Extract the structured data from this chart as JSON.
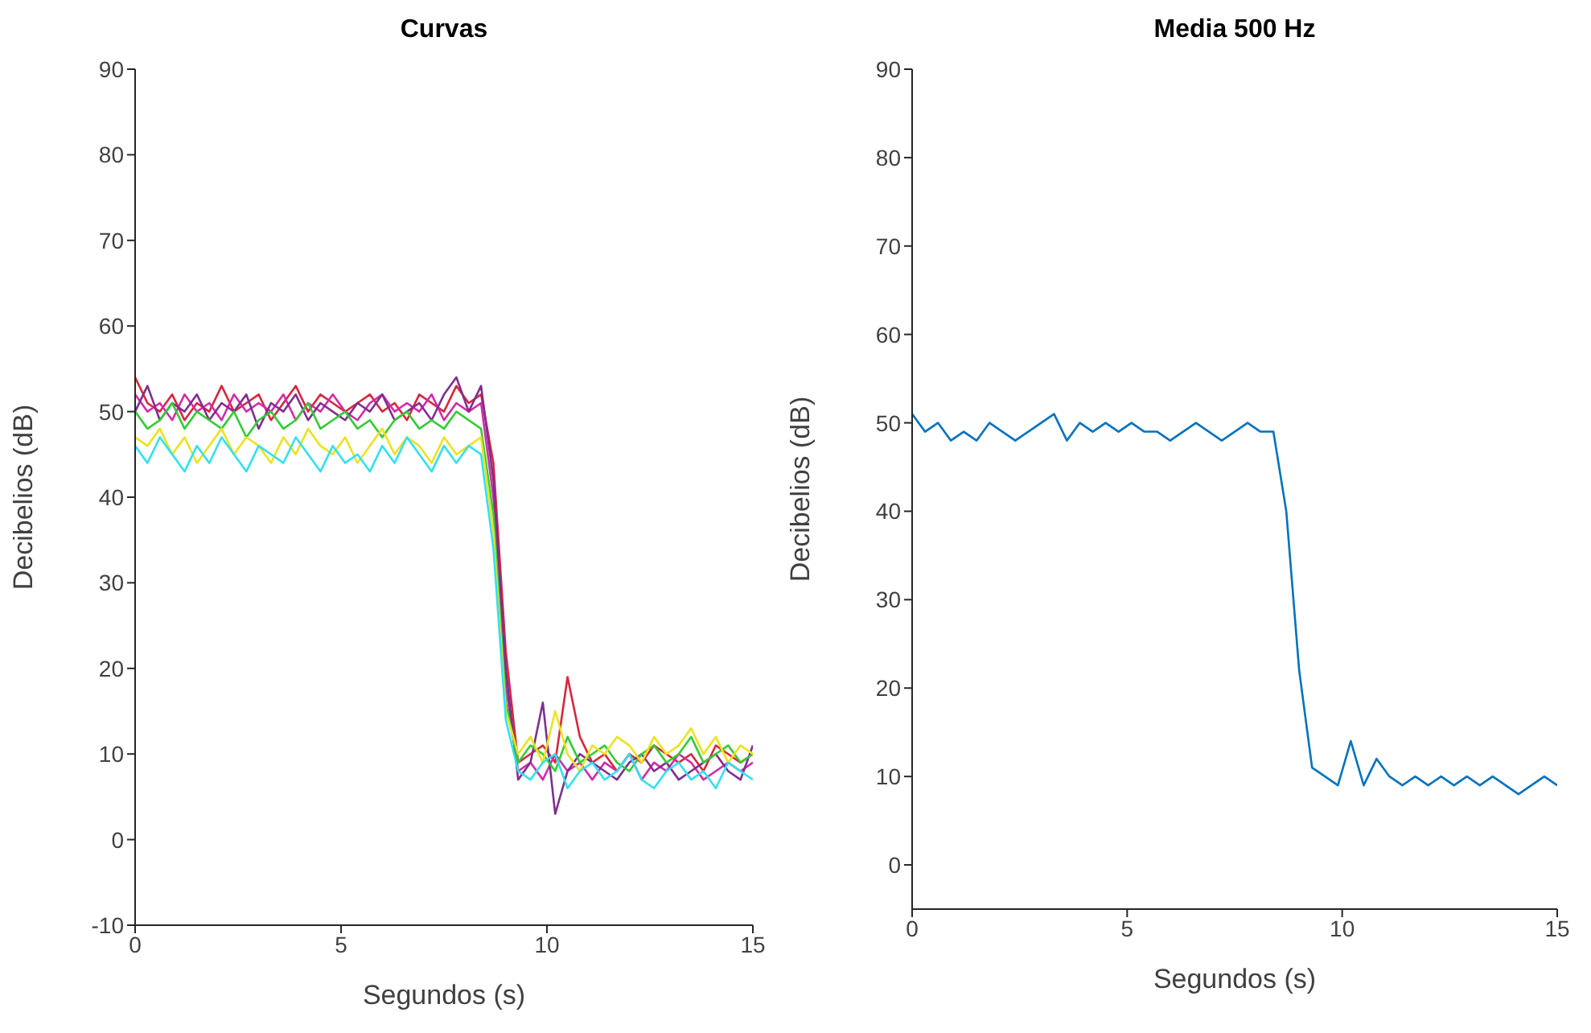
{
  "chart_data": [
    {
      "type": "line",
      "title": "Curvas",
      "xlabel": "Segundos (s)",
      "ylabel": "Decibelios (dB)",
      "xlim": [
        0,
        15
      ],
      "xticks": [
        0,
        5,
        10,
        15
      ],
      "ylim": [
        -10,
        90
      ],
      "yticks": [
        -10,
        0,
        10,
        20,
        30,
        40,
        50,
        60,
        70,
        80,
        90
      ],
      "grid": false,
      "legend": false,
      "marker": "none",
      "line_style": "solid",
      "x": [
        0,
        0.3,
        0.6,
        0.9,
        1.2,
        1.5,
        1.8,
        2.1,
        2.4,
        2.7,
        3,
        3.3,
        3.6,
        3.9,
        4.2,
        4.5,
        4.8,
        5.1,
        5.4,
        5.7,
        6,
        6.3,
        6.6,
        6.9,
        7.2,
        7.5,
        7.8,
        8.1,
        8.4,
        8.7,
        9,
        9.3,
        9.6,
        9.9,
        10.2,
        10.5,
        10.8,
        11.1,
        11.4,
        11.7,
        12,
        12.3,
        12.6,
        12.9,
        13.2,
        13.5,
        13.8,
        14.1,
        14.4,
        14.7,
        15
      ],
      "series": [
        {
          "color": "#d7263d",
          "values": [
            54,
            51,
            50,
            52,
            49,
            51,
            50,
            53,
            50,
            51,
            52,
            49,
            51,
            53,
            50,
            52,
            51,
            50,
            51,
            52,
            50,
            51,
            49,
            52,
            51,
            50,
            53,
            51,
            52,
            44,
            22,
            9,
            10,
            11,
            9,
            19,
            12,
            9,
            10,
            8,
            10,
            9,
            11,
            10,
            9,
            10,
            8,
            11,
            10,
            9,
            10
          ]
        },
        {
          "color": "#d22ca8",
          "values": [
            52,
            50,
            51,
            49,
            52,
            50,
            51,
            49,
            52,
            50,
            51,
            50,
            52,
            49,
            51,
            50,
            52,
            50,
            49,
            51,
            52,
            50,
            51,
            50,
            52,
            49,
            51,
            50,
            51,
            40,
            18,
            8,
            9,
            7,
            10,
            8,
            9,
            7,
            9,
            8,
            10,
            7,
            9,
            8,
            10,
            9,
            7,
            8,
            9,
            8,
            9
          ]
        },
        {
          "color": "#7e2f8e",
          "values": [
            50,
            53,
            49,
            51,
            50,
            52,
            49,
            51,
            50,
            52,
            48,
            51,
            50,
            52,
            49,
            51,
            50,
            49,
            51,
            50,
            52,
            49,
            50,
            51,
            49,
            52,
            54,
            50,
            53,
            42,
            20,
            7,
            9,
            16,
            3,
            8,
            10,
            9,
            8,
            7,
            9,
            10,
            8,
            9,
            7,
            8,
            9,
            10,
            8,
            7,
            11
          ]
        },
        {
          "color": "#33cc33",
          "values": [
            50,
            48,
            49,
            51,
            48,
            50,
            49,
            48,
            50,
            47,
            49,
            50,
            48,
            49,
            51,
            48,
            49,
            50,
            48,
            49,
            47,
            49,
            50,
            48,
            49,
            48,
            50,
            49,
            48,
            38,
            16,
            9,
            11,
            10,
            8,
            12,
            9,
            10,
            11,
            9,
            8,
            10,
            11,
            9,
            10,
            12,
            9,
            10,
            11,
            9,
            10
          ]
        },
        {
          "color": "#ede21e",
          "values": [
            47,
            46,
            48,
            45,
            47,
            44,
            46,
            48,
            45,
            47,
            46,
            44,
            47,
            45,
            48,
            46,
            45,
            47,
            44,
            46,
            48,
            45,
            47,
            46,
            44,
            47,
            45,
            46,
            47,
            36,
            15,
            10,
            12,
            9,
            15,
            10,
            8,
            11,
            10,
            12,
            11,
            9,
            12,
            10,
            11,
            13,
            10,
            12,
            9,
            11,
            10
          ]
        },
        {
          "color": "#33e0f0",
          "values": [
            46,
            44,
            47,
            45,
            43,
            46,
            44,
            47,
            45,
            43,
            46,
            45,
            44,
            47,
            45,
            43,
            46,
            44,
            45,
            43,
            46,
            44,
            47,
            45,
            43,
            46,
            44,
            46,
            45,
            34,
            14,
            8,
            7,
            9,
            10,
            6,
            8,
            9,
            7,
            8,
            10,
            7,
            6,
            8,
            9,
            7,
            8,
            6,
            9,
            8,
            7
          ]
        }
      ]
    },
    {
      "type": "line",
      "title": "Media 500 Hz",
      "xlabel": "Segundos (s)",
      "ylabel": "Decibelios (dB)",
      "xlim": [
        0,
        15
      ],
      "xticks": [
        0,
        5,
        10,
        15
      ],
      "ylim": [
        -5,
        90
      ],
      "yticks": [
        0,
        10,
        20,
        30,
        40,
        50,
        60,
        70,
        80,
        90
      ],
      "grid": false,
      "legend": false,
      "marker": "none",
      "line_style": "solid",
      "x": [
        0,
        0.3,
        0.6,
        0.9,
        1.2,
        1.5,
        1.8,
        2.1,
        2.4,
        2.7,
        3,
        3.3,
        3.6,
        3.9,
        4.2,
        4.5,
        4.8,
        5.1,
        5.4,
        5.7,
        6,
        6.3,
        6.6,
        6.9,
        7.2,
        7.5,
        7.8,
        8.1,
        8.4,
        8.7,
        9,
        9.3,
        9.6,
        9.9,
        10.2,
        10.5,
        10.8,
        11.1,
        11.4,
        11.7,
        12,
        12.3,
        12.6,
        12.9,
        13.2,
        13.5,
        13.8,
        14.1,
        14.4,
        14.7,
        15
      ],
      "series": [
        {
          "color": "#0072bd",
          "values": [
            51,
            49,
            50,
            48,
            49,
            48,
            50,
            49,
            48,
            49,
            50,
            51,
            48,
            50,
            49,
            50,
            49,
            50,
            49,
            49,
            48,
            49,
            50,
            49,
            48,
            49,
            50,
            49,
            49,
            40,
            22,
            11,
            10,
            9,
            14,
            9,
            12,
            10,
            9,
            10,
            9,
            10,
            9,
            10,
            9,
            10,
            9,
            8,
            9,
            10,
            9
          ]
        }
      ]
    }
  ]
}
